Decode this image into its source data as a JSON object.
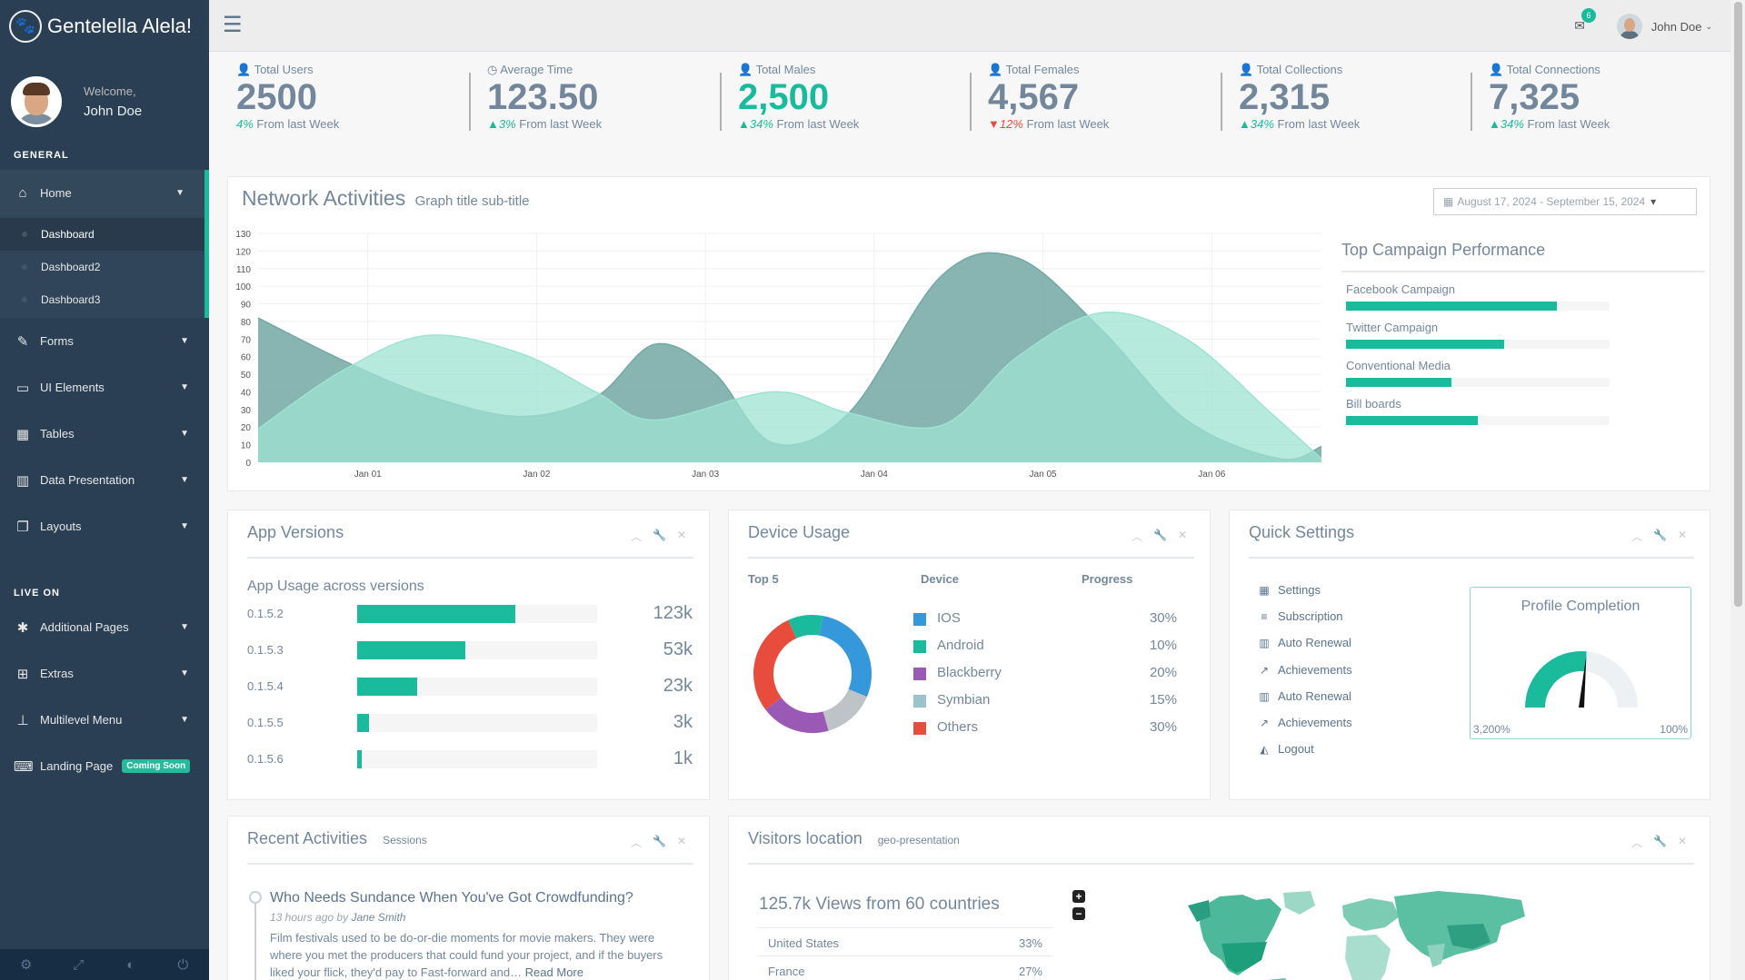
{
  "brand": {
    "title": "Gentelella Alela!"
  },
  "profile": {
    "welcome": "Welcome,",
    "name": "John Doe"
  },
  "sidebar": {
    "general_title": "GENERAL",
    "home_label": "Home",
    "sub_items": [
      "Dashboard",
      "Dashboard2",
      "Dashboard3"
    ],
    "items": [
      {
        "label": "Forms",
        "icon": "edit-icon"
      },
      {
        "label": "UI Elements",
        "icon": "desktop-icon"
      },
      {
        "label": "Tables",
        "icon": "table-icon"
      },
      {
        "label": "Data Presentation",
        "icon": "bar-chart-icon"
      },
      {
        "label": "Layouts",
        "icon": "clone-icon"
      }
    ],
    "live_title": "LIVE ON",
    "live_items": [
      {
        "label": "Additional Pages",
        "icon": "bug-icon"
      },
      {
        "label": "Extras",
        "icon": "windows-icon"
      },
      {
        "label": "Multilevel Menu",
        "icon": "sitemap-icon"
      }
    ],
    "landing_label": "Landing Page",
    "coming_soon": "Coming Soon"
  },
  "topnav": {
    "user_name": "John Doe",
    "mail_count": "6"
  },
  "tiles": [
    {
      "label": "Total Users",
      "value": "2500",
      "pct": "4%",
      "trend": "none",
      "foot": "From last Week"
    },
    {
      "label": "Average Time",
      "value": "123.50",
      "pct": "3%",
      "trend": "up",
      "foot": "From last Week"
    },
    {
      "label": "Total Males",
      "value": "2,500",
      "pct": "34%",
      "trend": "up",
      "foot": "From last Week"
    },
    {
      "label": "Total Females",
      "value": "4,567",
      "pct": "12%",
      "trend": "down",
      "foot": "From last Week"
    },
    {
      "label": "Total Collections",
      "value": "2,315",
      "pct": "34%",
      "trend": "up",
      "foot": "From last Week"
    },
    {
      "label": "Total Connections",
      "value": "7,325",
      "pct": "34%",
      "trend": "up",
      "foot": "From last Week"
    }
  ],
  "network": {
    "title": "Network Activities",
    "subtitle": "Graph title sub-title",
    "date_range": "August 17, 2024 - September 15, 2024"
  },
  "chart_data": {
    "type": "area",
    "x": [
      "Jan 01",
      "Jan 02",
      "Jan 03",
      "Jan 04",
      "Jan 05",
      "Jan 06"
    ],
    "ylim": [
      0,
      130
    ],
    "yticks": [
      0,
      10,
      20,
      30,
      40,
      50,
      60,
      70,
      80,
      90,
      100,
      110,
      120,
      130
    ],
    "series": [
      {
        "color": "#73A8A4",
        "points": [
          [
            0.0,
            82
          ],
          [
            0.5,
            58
          ],
          [
            1.0,
            38
          ],
          [
            1.55,
            26
          ],
          [
            2.0,
            37
          ],
          [
            2.35,
            67
          ],
          [
            2.7,
            51
          ],
          [
            3.05,
            11
          ],
          [
            3.5,
            28
          ],
          [
            4.05,
            106
          ],
          [
            4.5,
            116
          ],
          [
            5.0,
            75
          ],
          [
            5.5,
            24
          ],
          [
            6.05,
            2
          ],
          [
            6.3,
            9
          ]
        ]
      },
      {
        "color": "#9EE3D2",
        "points": [
          [
            0.0,
            19
          ],
          [
            0.5,
            52
          ],
          [
            1.0,
            72
          ],
          [
            1.55,
            62
          ],
          [
            2.0,
            40
          ],
          [
            2.35,
            24
          ],
          [
            3.05,
            40
          ],
          [
            3.5,
            28
          ],
          [
            4.05,
            21
          ],
          [
            4.5,
            60
          ],
          [
            5.0,
            85
          ],
          [
            5.5,
            70
          ],
          [
            6.0,
            28
          ],
          [
            6.3,
            2
          ]
        ]
      }
    ]
  },
  "campaign": {
    "title": "Top Campaign Performance",
    "items": [
      {
        "label": "Facebook Campaign",
        "value": 0.8
      },
      {
        "label": "Twitter Campaign",
        "value": 0.6
      },
      {
        "label": "Conventional Media",
        "value": 0.4
      },
      {
        "label": "Bill boards",
        "value": 0.5
      }
    ]
  },
  "app_versions": {
    "title": "App Versions",
    "subtitle": "App Usage across versions",
    "rows": [
      {
        "version": "0.1.5.2",
        "value": "123k",
        "fill": 0.66
      },
      {
        "version": "0.1.5.3",
        "value": "53k",
        "fill": 0.45
      },
      {
        "version": "0.1.5.4",
        "value": "23k",
        "fill": 0.25
      },
      {
        "version": "0.1.5.5",
        "value": "3k",
        "fill": 0.05
      },
      {
        "version": "0.1.5.6",
        "value": "1k",
        "fill": 0.02
      }
    ]
  },
  "device": {
    "title": "Device Usage",
    "head_top": "Top 5",
    "head_device": "Device",
    "head_progress": "Progress",
    "rows": [
      {
        "name": "IOS",
        "pct": "30%",
        "color": "#3498DB",
        "share": 30
      },
      {
        "name": "Android",
        "pct": "10%",
        "color": "#1ABB9C",
        "share": 10
      },
      {
        "name": "Blackberry",
        "pct": "20%",
        "color": "#9B59B6",
        "share": 20
      },
      {
        "name": "Symbian",
        "pct": "15%",
        "color": "#9CC2CB",
        "share": 15
      },
      {
        "name": "Others",
        "pct": "30%",
        "color": "#E74C3C",
        "share": 30
      }
    ]
  },
  "quick_settings": {
    "title": "Quick Settings",
    "items": [
      {
        "label": "Settings",
        "icon": "calendar-icon"
      },
      {
        "label": "Subscription",
        "icon": "bars-icon"
      },
      {
        "label": "Auto Renewal",
        "icon": "bar-chart-icon"
      },
      {
        "label": "Achievements",
        "icon": "line-chart-icon"
      },
      {
        "label": "Auto Renewal",
        "icon": "bar-chart-icon"
      },
      {
        "label": "Achievements",
        "icon": "line-chart-icon"
      },
      {
        "label": "Logout",
        "icon": "area-chart-icon"
      }
    ],
    "profile_title": "Profile Completion",
    "gauge_min": "3,200%",
    "gauge_max": "100%",
    "gauge_level": 0.53
  },
  "recent": {
    "title": "Recent Activities",
    "subtitle": "Sessions",
    "item_title": "Who Needs Sundance When You've Got Crowdfunding?",
    "item_time": "13 hours ago",
    "item_by": "by",
    "item_author": "Jane Smith",
    "item_body": "Film festivals used to be do-or-die moments for movie makers. They were where you met the producers that could fund your project, and if the buyers liked your flick, they'd pay to Fast-forward and…",
    "read_more": "Read More"
  },
  "visitors": {
    "title": "Visitors location",
    "subtitle": "geo-presentation",
    "views": "125.7k Views from 60 countries",
    "rows": [
      {
        "country": "United States",
        "pct": "33%"
      },
      {
        "country": "France",
        "pct": "27%"
      }
    ]
  },
  "colors": {
    "accent": "#1ABB9C",
    "sidebar": "#2A3F54",
    "text": "#73879C",
    "danger": "#E74C3C"
  }
}
